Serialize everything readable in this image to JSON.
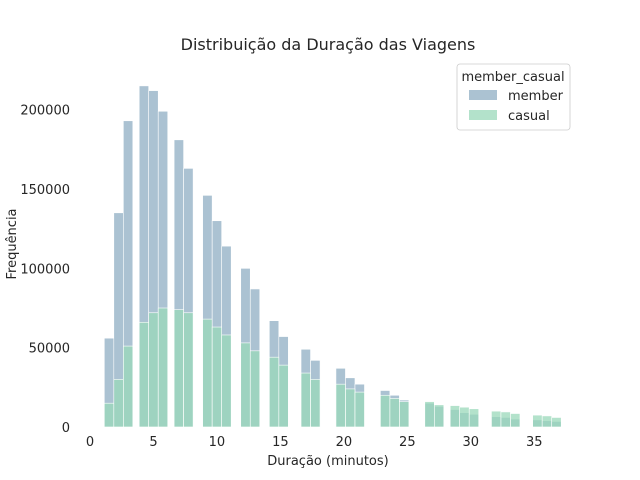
{
  "chart_data": {
    "type": "bar",
    "title": "Distribuição da Duração das Viagens",
    "xlabel": "Duração (minutos)",
    "ylabel": "Frequência",
    "xlim": [
      0,
      37.5
    ],
    "ylim": [
      0,
      225000
    ],
    "xticks": [
      0,
      5,
      10,
      15,
      20,
      25,
      30,
      35
    ],
    "yticks": [
      0,
      50000,
      100000,
      150000,
      200000
    ],
    "bar_width": 0.75,
    "overlay": true,
    "legend": {
      "title": "member_casual",
      "position": "top-right"
    },
    "x": [
      1.5,
      2.25,
      3.0,
      4.25,
      5.0,
      5.75,
      7.0,
      7.75,
      9.25,
      10.0,
      10.75,
      12.25,
      13.0,
      14.5,
      15.25,
      17.0,
      17.75,
      19.75,
      20.5,
      21.25,
      23.25,
      24.0,
      24.75,
      26.75,
      27.5,
      28.75,
      29.5,
      30.25,
      32.0,
      32.75,
      33.5,
      35.25,
      36.0,
      36.75
    ],
    "series": [
      {
        "name": "member",
        "color": "#8fadc3",
        "values": [
          56000,
          135000,
          193000,
          215000,
          212000,
          199000,
          181000,
          163000,
          146000,
          130000,
          114000,
          100000,
          87000,
          67000,
          57000,
          49000,
          42000,
          37000,
          31000,
          27000,
          23000,
          20000,
          17000,
          15000,
          13000,
          11000,
          9000,
          8000,
          6500,
          6000,
          5000,
          4500,
          4000,
          3500
        ]
      },
      {
        "name": "casual",
        "color": "#99d8b9",
        "values": [
          15000,
          30000,
          51000,
          66000,
          72000,
          75000,
          74000,
          72000,
          68000,
          63000,
          58000,
          53000,
          48000,
          44000,
          39000,
          34000,
          30000,
          27000,
          24000,
          22000,
          20000,
          18000,
          16000,
          16000,
          14000,
          13500,
          12500,
          11500,
          10000,
          9500,
          8500,
          7500,
          7000,
          6000
        ]
      }
    ]
  }
}
